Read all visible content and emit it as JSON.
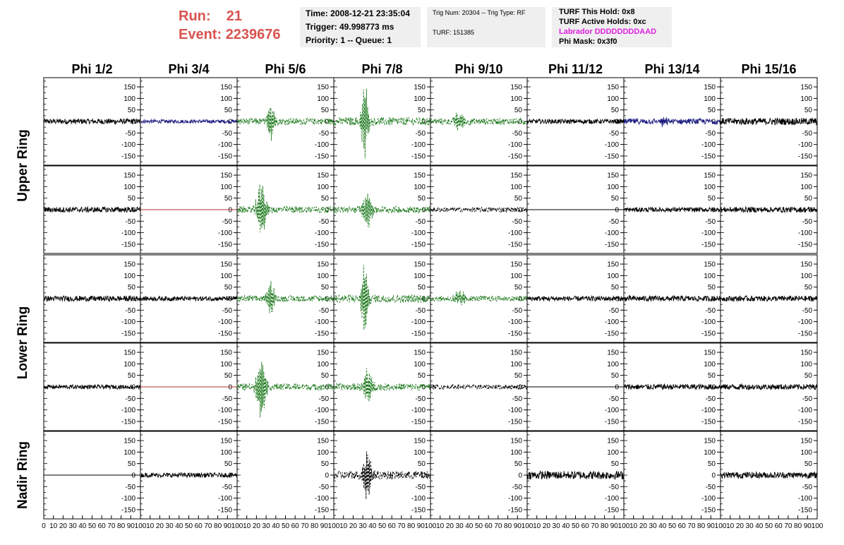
{
  "header": {
    "run_label": "Run:",
    "run_value": "21",
    "event_label": "Event:",
    "event_value": "2239676"
  },
  "time_box": {
    "time": "Time: 2008-12-21 23:35:04",
    "trigger": "Trigger: 49.998773 ms",
    "priority": "Priority: 1 -- Queue: 1"
  },
  "trig_box": {
    "trig_line": "Trig Num: 20304 -- Trig Type: RF",
    "turf_line": "TURF: 151385"
  },
  "turf_box": {
    "this_hold": "TURF This Hold: 0x8",
    "active_holds": "TURF Active Holds: 0xc",
    "labrador": "Labrador DDDDDDDDAAD",
    "phi_mask": "Phi Mask: 0x3f0"
  },
  "colors": {
    "header_red": "#d9534f",
    "labrador_magenta": "#e020e0",
    "trace_black": "#000000",
    "trace_blue": "#1a1a80",
    "trace_green": "#1f7a1f",
    "trace_red": "#b03030",
    "panel_bg": "#ffffff",
    "box_bg": "#efefef"
  },
  "chart_data": {
    "type": "line",
    "columns": [
      "Phi 1/2",
      "Phi 3/4",
      "Phi 5/6",
      "Phi 7/8",
      "Phi 9/10",
      "Phi 11/12",
      "Phi 13/14",
      "Phi 15/16"
    ],
    "ring_labels": [
      "Upper Ring",
      "Lower Ring",
      "Nadir Ring"
    ],
    "rows": 5,
    "ylim": [
      -190,
      190
    ],
    "yticks": [
      -150,
      -100,
      -50,
      0,
      50,
      100,
      150
    ],
    "xlim": [
      0,
      100
    ],
    "xticks": [
      0,
      10,
      20,
      30,
      40,
      50,
      60,
      70,
      80,
      90,
      100
    ],
    "grid": false,
    "panels": [
      [
        {
          "color": "black",
          "style": "solid",
          "noise": 12
        },
        {
          "color": "blue",
          "style": "solid",
          "noise": 8
        },
        {
          "color": "green",
          "style": "dashed",
          "noise": 14,
          "peak": 35,
          "amp": 90,
          "width": 4
        },
        {
          "color": "green",
          "style": "dashed",
          "noise": 18,
          "peak": 32,
          "amp": 170,
          "width": 4
        },
        {
          "color": "green",
          "style": "dashed",
          "noise": 14,
          "peak": 30,
          "amp": 40,
          "width": 6
        },
        {
          "color": "black",
          "style": "solid",
          "noise": 10
        },
        {
          "color": "blue",
          "style": "solid",
          "noise": 12,
          "peak": 40,
          "amp": 25,
          "width": 5
        },
        {
          "color": "black",
          "style": "solid",
          "noise": 15
        }
      ],
      [
        {
          "color": "black",
          "style": "solid",
          "noise": 12
        },
        {
          "color": "red",
          "style": "flat",
          "noise": 0
        },
        {
          "color": "green",
          "style": "dashed",
          "noise": 15,
          "peak": 25,
          "amp": 130,
          "width": 5
        },
        {
          "color": "green",
          "style": "dashed",
          "noise": 15,
          "peak": 35,
          "amp": 90,
          "width": 5
        },
        {
          "color": "black",
          "style": "dashed",
          "noise": 10
        },
        {
          "color": "black",
          "style": "flat",
          "noise": 0
        },
        {
          "color": "black",
          "style": "solid",
          "noise": 10
        },
        {
          "color": "black",
          "style": "solid",
          "noise": 12
        }
      ],
      [
        {
          "color": "black",
          "style": "solid",
          "noise": 12
        },
        {
          "color": "black",
          "style": "solid",
          "noise": 10
        },
        {
          "color": "green",
          "style": "dashed",
          "noise": 14,
          "peak": 35,
          "amp": 90,
          "width": 4
        },
        {
          "color": "green",
          "style": "dashed",
          "noise": 18,
          "peak": 32,
          "amp": 170,
          "width": 4
        },
        {
          "color": "green",
          "style": "dashed",
          "noise": 12,
          "peak": 30,
          "amp": 35,
          "width": 6
        },
        {
          "color": "black",
          "style": "solid",
          "noise": 11
        },
        {
          "color": "black",
          "style": "solid",
          "noise": 12
        },
        {
          "color": "black",
          "style": "solid",
          "noise": 12
        }
      ],
      [
        {
          "color": "black",
          "style": "solid",
          "noise": 9
        },
        {
          "color": "red",
          "style": "flat",
          "noise": 0
        },
        {
          "color": "green",
          "style": "dashed",
          "noise": 15,
          "peak": 25,
          "amp": 150,
          "width": 5
        },
        {
          "color": "green",
          "style": "dashed",
          "noise": 15,
          "peak": 35,
          "amp": 90,
          "width": 5
        },
        {
          "color": "black",
          "style": "dashed",
          "noise": 10
        },
        {
          "color": "black",
          "style": "flat",
          "noise": 0
        },
        {
          "color": "black",
          "style": "solid",
          "noise": 12
        },
        {
          "color": "black",
          "style": "solid",
          "noise": 12
        }
      ],
      [
        {
          "color": "black",
          "style": "flat",
          "noise": 0
        },
        {
          "color": "black",
          "style": "solid",
          "noise": 10
        },
        {
          "color": "none",
          "style": "none",
          "noise": 0
        },
        {
          "color": "black",
          "style": "dashed",
          "noise": 18,
          "peak": 35,
          "amp": 140,
          "width": 4
        },
        {
          "color": "none",
          "style": "none",
          "noise": 0
        },
        {
          "color": "black",
          "style": "solid",
          "noise": 18
        },
        {
          "color": "none",
          "style": "none",
          "noise": 0
        },
        {
          "color": "black",
          "style": "solid",
          "noise": 14
        }
      ]
    ]
  }
}
